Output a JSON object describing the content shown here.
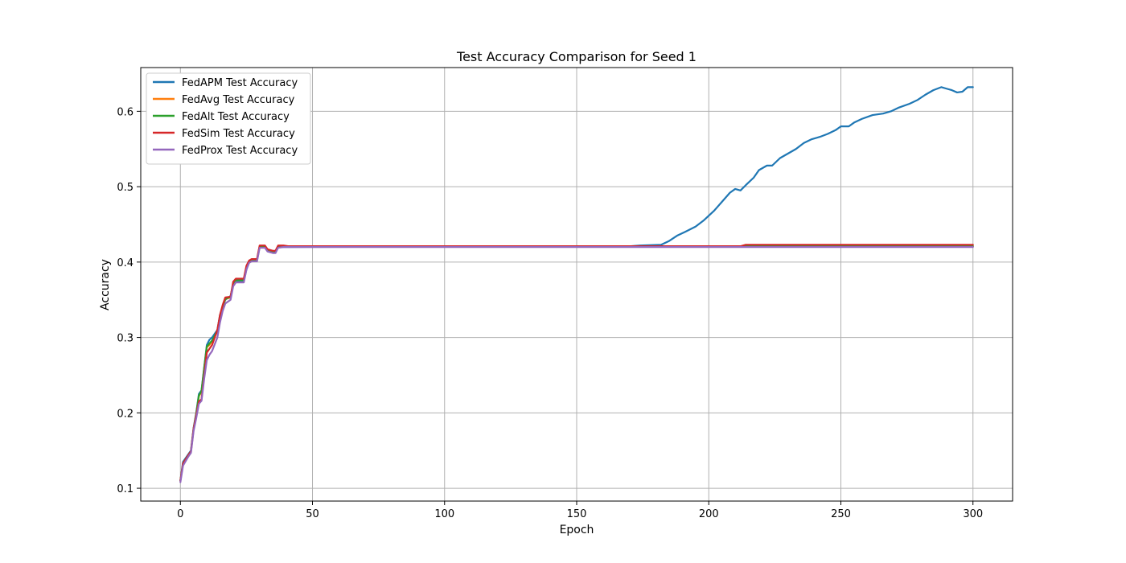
{
  "chart_data": {
    "type": "line",
    "title": "Test Accuracy Comparison for Seed 1",
    "xlabel": "Epoch",
    "ylabel": "Accuracy",
    "xlim": [
      -15,
      315
    ],
    "ylim": [
      0.083,
      0.658
    ],
    "xticks": [
      0,
      50,
      100,
      150,
      200,
      250,
      300
    ],
    "yticks": [
      0.1,
      0.2,
      0.3,
      0.4,
      0.5,
      0.6
    ],
    "grid": true,
    "legend_position": "top-left",
    "series": [
      {
        "name": "FedAPM Test Accuracy",
        "color": "#1f77b4",
        "points": [
          [
            0,
            0.11
          ],
          [
            1,
            0.135
          ],
          [
            3,
            0.145
          ],
          [
            4,
            0.15
          ],
          [
            5,
            0.18
          ],
          [
            6,
            0.2
          ],
          [
            7,
            0.225
          ],
          [
            8,
            0.23
          ],
          [
            9,
            0.26
          ],
          [
            10,
            0.29
          ],
          [
            11,
            0.297
          ],
          [
            12,
            0.3
          ],
          [
            14,
            0.31
          ],
          [
            15,
            0.33
          ],
          [
            16,
            0.34
          ],
          [
            17,
            0.35
          ],
          [
            19,
            0.355
          ],
          [
            20,
            0.37
          ],
          [
            21,
            0.375
          ],
          [
            24,
            0.375
          ],
          [
            25,
            0.39
          ],
          [
            26,
            0.4
          ],
          [
            27,
            0.402
          ],
          [
            29,
            0.402
          ],
          [
            30,
            0.42
          ],
          [
            32,
            0.42
          ],
          [
            33,
            0.415
          ],
          [
            35,
            0.413
          ],
          [
            36,
            0.413
          ],
          [
            37,
            0.42
          ],
          [
            39,
            0.42
          ],
          [
            41,
            0.42
          ],
          [
            170,
            0.421
          ],
          [
            174,
            0.422
          ],
          [
            182,
            0.423
          ],
          [
            185,
            0.428
          ],
          [
            188,
            0.435
          ],
          [
            191,
            0.44
          ],
          [
            195,
            0.447
          ],
          [
            198,
            0.455
          ],
          [
            202,
            0.468
          ],
          [
            205,
            0.48
          ],
          [
            208,
            0.492
          ],
          [
            210,
            0.497
          ],
          [
            212,
            0.495
          ],
          [
            214,
            0.502
          ],
          [
            217,
            0.512
          ],
          [
            219,
            0.522
          ],
          [
            222,
            0.528
          ],
          [
            224,
            0.528
          ],
          [
            227,
            0.538
          ],
          [
            230,
            0.544
          ],
          [
            233,
            0.55
          ],
          [
            236,
            0.558
          ],
          [
            239,
            0.563
          ],
          [
            242,
            0.566
          ],
          [
            245,
            0.57
          ],
          [
            248,
            0.575
          ],
          [
            250,
            0.58
          ],
          [
            253,
            0.58
          ],
          [
            255,
            0.585
          ],
          [
            258,
            0.59
          ],
          [
            262,
            0.595
          ],
          [
            266,
            0.597
          ],
          [
            269,
            0.6
          ],
          [
            272,
            0.605
          ],
          [
            276,
            0.61
          ],
          [
            279,
            0.615
          ],
          [
            282,
            0.622
          ],
          [
            285,
            0.628
          ],
          [
            288,
            0.632
          ],
          [
            290,
            0.63
          ],
          [
            292,
            0.628
          ],
          [
            294,
            0.625
          ],
          [
            296,
            0.626
          ],
          [
            298,
            0.632
          ],
          [
            300,
            0.632
          ]
        ]
      },
      {
        "name": "FedAvg Test Accuracy",
        "color": "#ff7f0e",
        "points": [
          [
            0,
            0.11
          ],
          [
            1,
            0.132
          ],
          [
            3,
            0.143
          ],
          [
            4,
            0.148
          ],
          [
            5,
            0.178
          ],
          [
            6,
            0.198
          ],
          [
            7,
            0.222
          ],
          [
            8,
            0.228
          ],
          [
            9,
            0.258
          ],
          [
            10,
            0.287
          ],
          [
            11,
            0.29
          ],
          [
            12,
            0.295
          ],
          [
            14,
            0.308
          ],
          [
            15,
            0.328
          ],
          [
            16,
            0.34
          ],
          [
            17,
            0.351
          ],
          [
            19,
            0.353
          ],
          [
            20,
            0.37
          ],
          [
            21,
            0.376
          ],
          [
            24,
            0.376
          ],
          [
            25,
            0.393
          ],
          [
            26,
            0.401
          ],
          [
            27,
            0.403
          ],
          [
            29,
            0.403
          ],
          [
            30,
            0.421
          ],
          [
            32,
            0.421
          ],
          [
            33,
            0.416
          ],
          [
            35,
            0.414
          ],
          [
            36,
            0.414
          ],
          [
            37,
            0.421
          ],
          [
            39,
            0.421
          ],
          [
            41,
            0.421
          ],
          [
            300,
            0.421
          ]
        ]
      },
      {
        "name": "FedAlt Test Accuracy",
        "color": "#2ca02c",
        "points": [
          [
            0,
            0.11
          ],
          [
            1,
            0.133
          ],
          [
            3,
            0.144
          ],
          [
            4,
            0.149
          ],
          [
            5,
            0.179
          ],
          [
            6,
            0.199
          ],
          [
            7,
            0.223
          ],
          [
            8,
            0.229
          ],
          [
            9,
            0.259
          ],
          [
            10,
            0.288
          ],
          [
            11,
            0.292
          ],
          [
            12,
            0.296
          ],
          [
            14,
            0.309
          ],
          [
            15,
            0.329
          ],
          [
            16,
            0.341
          ],
          [
            17,
            0.351
          ],
          [
            19,
            0.354
          ],
          [
            20,
            0.371
          ],
          [
            21,
            0.376
          ],
          [
            24,
            0.376
          ],
          [
            25,
            0.392
          ],
          [
            26,
            0.401
          ],
          [
            27,
            0.403
          ],
          [
            29,
            0.403
          ],
          [
            30,
            0.421
          ],
          [
            32,
            0.421
          ],
          [
            33,
            0.416
          ],
          [
            35,
            0.414
          ],
          [
            36,
            0.414
          ],
          [
            37,
            0.421
          ],
          [
            39,
            0.421
          ],
          [
            41,
            0.421
          ],
          [
            300,
            0.421
          ]
        ]
      },
      {
        "name": "FedSim Test Accuracy",
        "color": "#d62728",
        "points": [
          [
            0,
            0.11
          ],
          [
            1,
            0.133
          ],
          [
            3,
            0.144
          ],
          [
            4,
            0.149
          ],
          [
            5,
            0.179
          ],
          [
            6,
            0.197
          ],
          [
            7,
            0.215
          ],
          [
            8,
            0.218
          ],
          [
            9,
            0.25
          ],
          [
            10,
            0.28
          ],
          [
            11,
            0.285
          ],
          [
            12,
            0.29
          ],
          [
            14,
            0.31
          ],
          [
            15,
            0.33
          ],
          [
            16,
            0.343
          ],
          [
            17,
            0.353
          ],
          [
            19,
            0.354
          ],
          [
            20,
            0.374
          ],
          [
            21,
            0.378
          ],
          [
            24,
            0.378
          ],
          [
            25,
            0.395
          ],
          [
            26,
            0.402
          ],
          [
            27,
            0.404
          ],
          [
            29,
            0.404
          ],
          [
            30,
            0.422
          ],
          [
            32,
            0.422
          ],
          [
            33,
            0.417
          ],
          [
            35,
            0.415
          ],
          [
            36,
            0.415
          ],
          [
            37,
            0.422
          ],
          [
            39,
            0.422
          ],
          [
            41,
            0.421
          ],
          [
            212,
            0.421
          ],
          [
            214,
            0.423
          ],
          [
            300,
            0.423
          ]
        ]
      },
      {
        "name": "FedProx Test Accuracy",
        "color": "#9467bd",
        "points": [
          [
            0,
            0.108
          ],
          [
            1,
            0.13
          ],
          [
            3,
            0.142
          ],
          [
            4,
            0.147
          ],
          [
            5,
            0.176
          ],
          [
            6,
            0.193
          ],
          [
            7,
            0.212
          ],
          [
            8,
            0.216
          ],
          [
            9,
            0.245
          ],
          [
            10,
            0.27
          ],
          [
            11,
            0.277
          ],
          [
            12,
            0.282
          ],
          [
            14,
            0.3
          ],
          [
            15,
            0.32
          ],
          [
            16,
            0.335
          ],
          [
            17,
            0.345
          ],
          [
            19,
            0.35
          ],
          [
            20,
            0.368
          ],
          [
            21,
            0.373
          ],
          [
            24,
            0.373
          ],
          [
            25,
            0.39
          ],
          [
            26,
            0.399
          ],
          [
            27,
            0.401
          ],
          [
            29,
            0.401
          ],
          [
            30,
            0.419
          ],
          [
            32,
            0.419
          ],
          [
            33,
            0.414
          ],
          [
            35,
            0.412
          ],
          [
            36,
            0.412
          ],
          [
            37,
            0.419
          ],
          [
            39,
            0.42
          ],
          [
            41,
            0.42
          ],
          [
            300,
            0.42
          ]
        ]
      }
    ]
  }
}
